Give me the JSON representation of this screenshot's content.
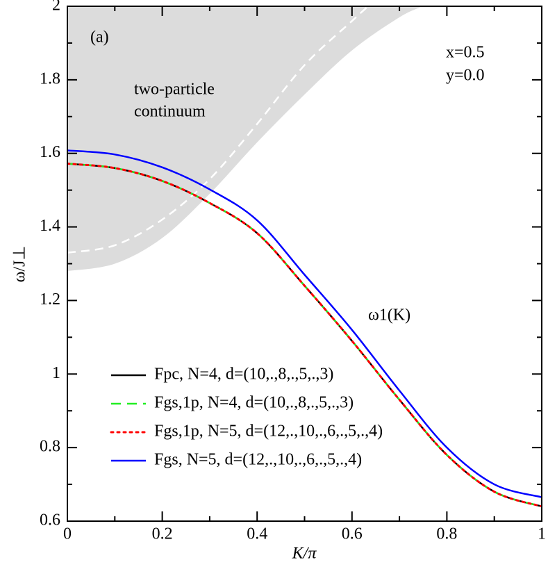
{
  "chart_data": {
    "type": "line",
    "xlabel": "K/π",
    "ylabel": "ω/J⊥",
    "xlim": [
      0,
      1
    ],
    "ylim": [
      0.6,
      2
    ],
    "xticks": [
      0,
      0.2,
      0.4,
      0.6,
      0.8,
      1
    ],
    "yticks": [
      0.6,
      0.8,
      1,
      1.2,
      1.4,
      1.6,
      1.8,
      2
    ],
    "annotations": [
      "(a)",
      "x=0.5",
      "y=0.0",
      "two-particle",
      "continuum",
      "ω1(K)"
    ],
    "continuum": {
      "color": "#dcdcdc",
      "x": [
        0,
        0.1,
        0.2,
        0.3,
        0.4,
        0.5,
        0.6,
        0.7,
        0.75
      ],
      "lower": [
        1.28,
        1.3,
        1.37,
        1.49,
        1.63,
        1.76,
        1.88,
        1.97,
        2.0
      ]
    },
    "continuum_center": {
      "color": "#ffffff",
      "x": [
        0,
        0.1,
        0.2,
        0.3,
        0.4,
        0.5,
        0.6,
        0.634
      ],
      "values": [
        1.33,
        1.35,
        1.42,
        1.53,
        1.68,
        1.84,
        1.96,
        2.0
      ]
    },
    "x": [
      0,
      0.1,
      0.2,
      0.3,
      0.4,
      0.5,
      0.6,
      0.7,
      0.8,
      0.9,
      1
    ],
    "series": [
      {
        "name": "Fpc, N=4, d=(10,.,8,.,5,.,3)",
        "color": "#000000",
        "dash": "solid",
        "values": [
          1.572,
          1.56,
          1.525,
          1.465,
          1.383,
          1.24,
          1.09,
          0.93,
          0.78,
          0.68,
          0.64
        ]
      },
      {
        "name": "Fgs,1p, N=4, d=(10,.,8,.,5,.,3)",
        "color": "#22ee22",
        "dash": "dashed",
        "values": [
          1.572,
          1.56,
          1.525,
          1.465,
          1.383,
          1.24,
          1.09,
          0.93,
          0.78,
          0.68,
          0.64
        ]
      },
      {
        "name": "Fgs,1p, N=5, d=(12,.,10,.,6,.,5,.,4)",
        "color": "#ff0000",
        "dash": "dotted",
        "values": [
          1.572,
          1.56,
          1.525,
          1.465,
          1.383,
          1.24,
          1.09,
          0.93,
          0.78,
          0.68,
          0.64
        ]
      },
      {
        "name": "Fgs, N=5, d=(12,.,10,.,6,.,5,.,4)",
        "color": "#0000ff",
        "dash": "solid",
        "values": [
          1.608,
          1.597,
          1.562,
          1.502,
          1.418,
          1.27,
          1.12,
          0.955,
          0.8,
          0.7,
          0.665
        ]
      }
    ]
  }
}
